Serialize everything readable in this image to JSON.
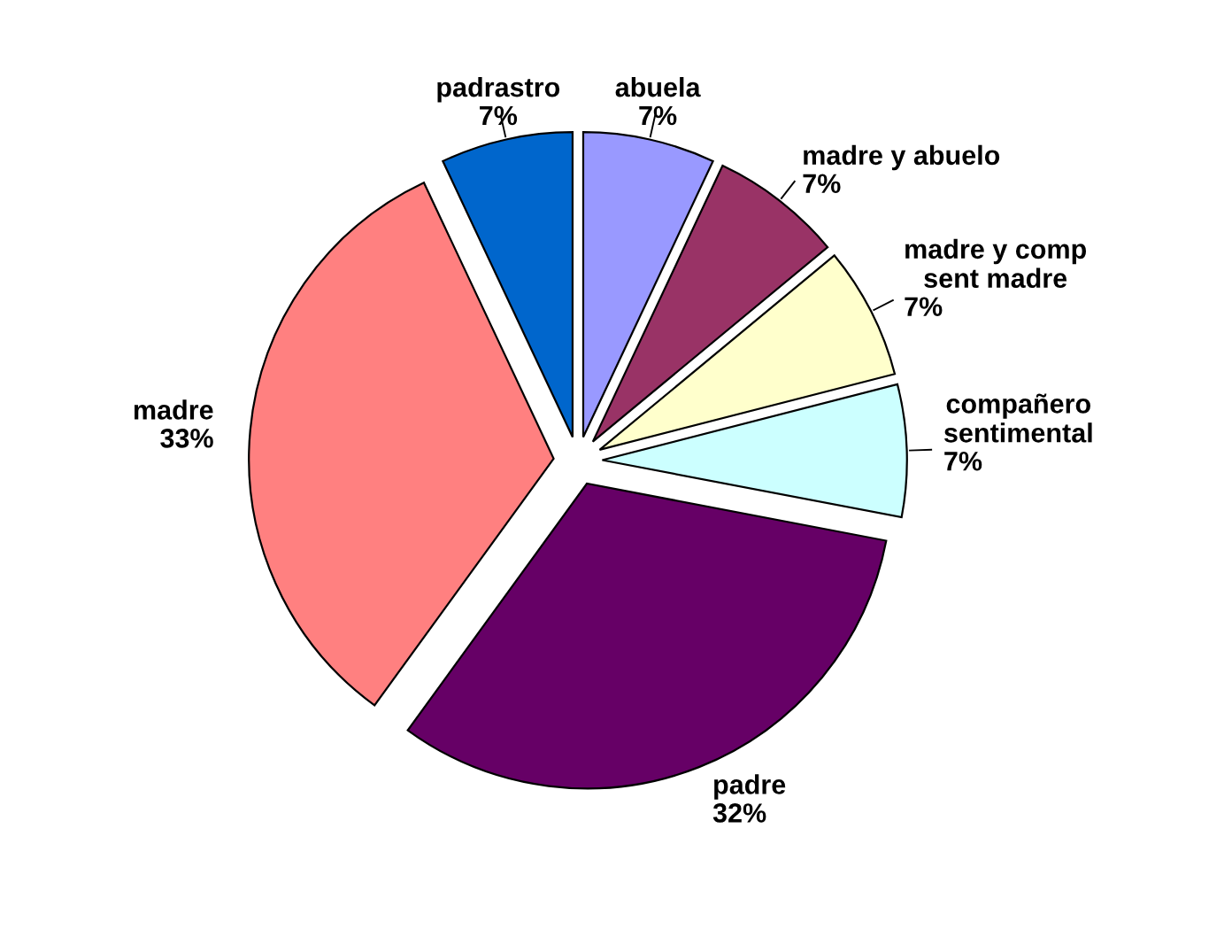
{
  "chart_data": {
    "type": "pie",
    "categories": [
      "abuela",
      "madre y abuelo",
      "madre y comp\nsent madre",
      "compañero\nsentimental",
      "padre",
      "madre",
      "padrastro"
    ],
    "values": [
      7,
      7,
      7,
      7,
      32,
      33,
      7
    ],
    "colors": [
      "#9999ff",
      "#993366",
      "#ffffcc",
      "#ccffff",
      "#660066",
      "#ff8080",
      "#0066cc"
    ],
    "value_labels": [
      "7%",
      "7%",
      "7%",
      "7%",
      "32%",
      "33%",
      "7%"
    ],
    "legend": false
  }
}
